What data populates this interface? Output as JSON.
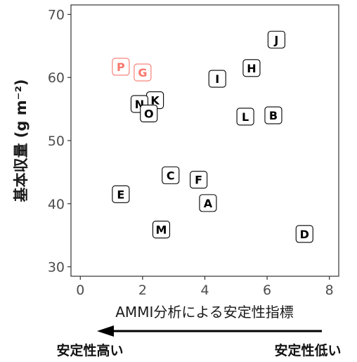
{
  "chart_data": {
    "type": "scatter",
    "xlabel": "AMMI分析による安定性指標",
    "ylabel": "基本収量 (g m⁻²)",
    "xlim": [
      -0.3,
      8.3
    ],
    "ylim": [
      28.5,
      71.5
    ],
    "x_ticks": [
      0,
      2,
      4,
      6,
      8
    ],
    "y_ticks": [
      30,
      40,
      50,
      60,
      70
    ],
    "grid": false,
    "points": [
      {
        "label": "A",
        "x": 4.1,
        "y": 40.1,
        "color": "#000000"
      },
      {
        "label": "B",
        "x": 6.2,
        "y": 54.0,
        "color": "#000000"
      },
      {
        "label": "C",
        "x": 2.9,
        "y": 44.5,
        "color": "#000000"
      },
      {
        "label": "D",
        "x": 7.2,
        "y": 35.2,
        "color": "#000000"
      },
      {
        "label": "E",
        "x": 1.3,
        "y": 41.5,
        "color": "#000000"
      },
      {
        "label": "F",
        "x": 3.8,
        "y": 43.8,
        "color": "#000000"
      },
      {
        "label": "G",
        "x": 2.0,
        "y": 60.8,
        "color": "#f8766d"
      },
      {
        "label": "H",
        "x": 5.5,
        "y": 61.5,
        "color": "#000000"
      },
      {
        "label": "I",
        "x": 4.4,
        "y": 59.8,
        "color": "#000000"
      },
      {
        "label": "J",
        "x": 6.3,
        "y": 66.0,
        "color": "#000000"
      },
      {
        "label": "K",
        "x": 2.4,
        "y": 56.4,
        "color": "#000000"
      },
      {
        "label": "L",
        "x": 5.3,
        "y": 53.8,
        "color": "#000000"
      },
      {
        "label": "M",
        "x": 2.6,
        "y": 35.9,
        "color": "#000000"
      },
      {
        "label": "N",
        "x": 1.9,
        "y": 55.8,
        "color": "#000000"
      },
      {
        "label": "O",
        "x": 2.2,
        "y": 54.3,
        "color": "#000000"
      },
      {
        "label": "P",
        "x": 1.3,
        "y": 61.7,
        "color": "#f8766d"
      }
    ]
  },
  "annotation": {
    "left_label": "安定性高い",
    "right_label": "安定性低い"
  }
}
